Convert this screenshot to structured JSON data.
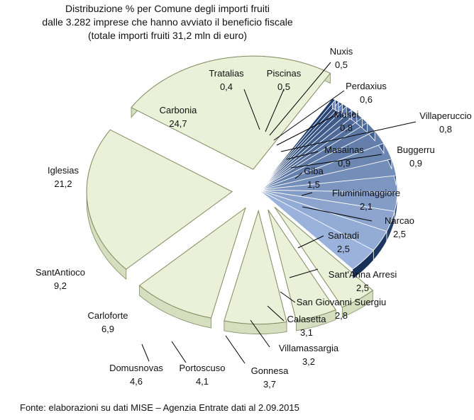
{
  "chart_data": {
    "type": "pie",
    "title_lines": [
      "Distribuzione % per Comune degli importi fruiti",
      "dalle 3.282 imprese  che hanno avviato il beneficio fiscale",
      "(totale importi fruiti 31,2 mln di euro)"
    ],
    "source": "Fonte: elaborazioni su dati MISE – Agenzia Entrate dati al 2.09.2015",
    "slices": [
      {
        "name": "Carbonia",
        "value": 24.7,
        "label": "24,7"
      },
      {
        "name": "Iglesias",
        "value": 21.2,
        "label": "21,2"
      },
      {
        "name": "SantAntioco",
        "value": 9.2,
        "label": "9,2"
      },
      {
        "name": "Carloforte",
        "value": 6.9,
        "label": "6,9"
      },
      {
        "name": "Domusnovas",
        "value": 4.6,
        "label": "4,6"
      },
      {
        "name": "Portoscuso",
        "value": 4.1,
        "label": "4,1"
      },
      {
        "name": "Gonnesa",
        "value": 3.7,
        "label": "3,7"
      },
      {
        "name": "Villamassargia",
        "value": 3.2,
        "label": "3,2"
      },
      {
        "name": "Calasetta",
        "value": 3.1,
        "label": "3,1"
      },
      {
        "name": "San Giovanni Suergiu",
        "value": 2.8,
        "label": "2,8"
      },
      {
        "name": "Sant'Anna Arresi",
        "value": 2.5,
        "label": "2,5"
      },
      {
        "name": "Santadi",
        "value": 2.5,
        "label": "2,5"
      },
      {
        "name": "Narcao",
        "value": 2.5,
        "label": "2,5"
      },
      {
        "name": "Fluminimaggiore",
        "value": 2.1,
        "label": "2,1"
      },
      {
        "name": "Giba",
        "value": 1.5,
        "label": "1,5"
      },
      {
        "name": "Buggerru",
        "value": 0.9,
        "label": "0,9"
      },
      {
        "name": "Masainas",
        "value": 0.9,
        "label": "0,9"
      },
      {
        "name": "Villaperuccio",
        "value": 0.8,
        "label": "0,8"
      },
      {
        "name": "Musei",
        "value": 0.8,
        "label": "0,8"
      },
      {
        "name": "Perdaxius",
        "value": 0.6,
        "label": "0,6"
      },
      {
        "name": "Nuxis",
        "value": 0.5,
        "label": "0,5"
      },
      {
        "name": "Piscinas",
        "value": 0.5,
        "label": "0,5"
      },
      {
        "name": "Tratalias",
        "value": 0.4,
        "label": "0,4"
      }
    ],
    "colors": {
      "exploded_fill": "#ebf1d9",
      "exploded_stroke": "#7f8c5f",
      "dark_start": "#1f3d6e",
      "dark_end": "#9bb3dc"
    }
  }
}
